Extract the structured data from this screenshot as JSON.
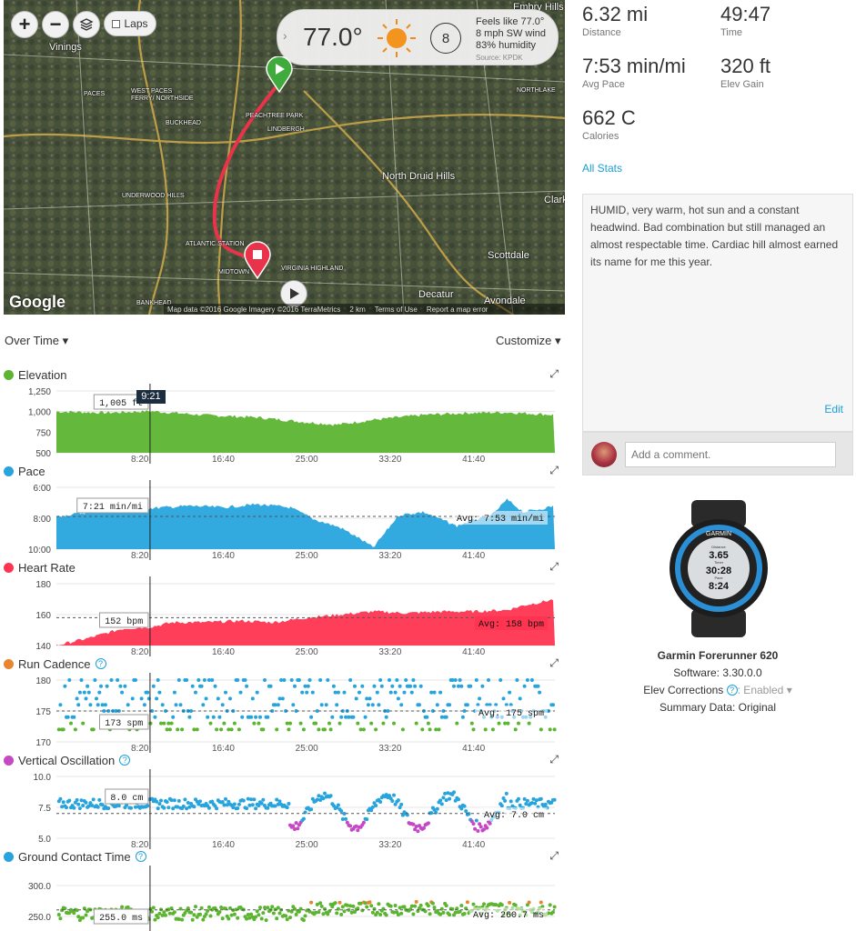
{
  "map": {
    "zoom_in": "+",
    "zoom_out": "−",
    "laps_label": "Laps",
    "weather": {
      "temp": "77.0°",
      "wind_speed": "8",
      "feels_like": "Feels like 77.0°",
      "wind": "8 mph SW wind",
      "humidity": "83% humidity",
      "source": "Source: KPDK"
    },
    "labels": [
      "Vinings",
      "PACES",
      "WEST PACES FERRY/ NORTHSIDE",
      "BUCKHEAD",
      "PEACHTREE PARK",
      "LINDBERGH",
      "North Druid Hills",
      "UNDERWOOD HILLS",
      "ATLANTIC STATION",
      "MIDTOWN",
      "VIRGINIA HIGHLAND",
      "Scottdale",
      "Decatur",
      "Avondale",
      "NORTHLAKE",
      "Clark",
      "BANKHEAD",
      "Embry Hills"
    ],
    "google": "Google",
    "footer": [
      "Map data ©2016 Google Imagery ©2016 TerraMetrics",
      "2 km",
      "Terms of Use",
      "Report a map error"
    ]
  },
  "stats": [
    {
      "value": "6.32 mi",
      "label": "Distance"
    },
    {
      "value": "49:47",
      "label": "Time"
    },
    {
      "value": "7:53 min/mi",
      "label": "Avg Pace"
    },
    {
      "value": "320 ft",
      "label": "Elev Gain"
    },
    {
      "value": "662 C",
      "label": "Calories"
    }
  ],
  "all_stats": "All Stats",
  "notes": {
    "text": "HUMID, very warm, hot sun and a constant headwind. Bad combination but still managed an almost respectable time. Cardiac hill almost earned its name for me this year.",
    "edit": "Edit"
  },
  "comment": {
    "placeholder": "Add a comment."
  },
  "device": {
    "brand": "GARMIN",
    "screen": [
      "Distance",
      "3.65",
      "Timer",
      "30:28",
      "Pace",
      "8:24"
    ],
    "name": "Garmin Forerunner 620",
    "software": "Software: 3.30.0.0",
    "elev_label": "Elev Corrections",
    "elev_value": ": Enabled",
    "summary": "Summary Data: Original"
  },
  "controls": {
    "over_time": "Over Time",
    "customize": "Customize"
  },
  "cursor": {
    "time": "9:21"
  },
  "colors": {
    "elevation": "#5cb531",
    "pace": "#27a4dd",
    "heart": "#ff3451",
    "cadence": "#e8852e",
    "vo": "#c548c5",
    "gct": "#27a4dd",
    "link": "#1a9fd6"
  },
  "chart_data": [
    {
      "type": "area",
      "title": "Elevation",
      "color": "#5cb531",
      "y_ticks": [
        "1,250",
        "1,000",
        "750",
        "500"
      ],
      "ylim": [
        500,
        1250
      ],
      "x_ticks": [
        "8:20",
        "16:40",
        "25:00",
        "33:20",
        "41:40"
      ],
      "xlim_s": [
        0,
        2987
      ],
      "series": [
        {
          "x": [
            0,
            300,
            561,
            900,
            1200,
            1500,
            1680,
            1900,
            2200,
            2500,
            2700,
            2987
          ],
          "values": [
            1000,
            985,
            1005,
            955,
            930,
            870,
            840,
            900,
            960,
            985,
            990,
            960
          ]
        }
      ],
      "cursor_label": "1,005 ft"
    },
    {
      "type": "area",
      "title": "Pace",
      "color": "#27a4dd",
      "y_ticks": [
        "6:00",
        "8:00",
        "10:00"
      ],
      "ylim_minutes": [
        6,
        10
      ],
      "inverted": true,
      "x_ticks": [
        "8:20",
        "16:40",
        "25:00",
        "33:20",
        "41:40"
      ],
      "series": [
        {
          "x": [
            0,
            200,
            400,
            561,
            800,
            1000,
            1200,
            1400,
            1550,
            1700,
            1800,
            1900,
            2050,
            2200,
            2400,
            2500,
            2600,
            2700,
            2800,
            2900,
            2987
          ],
          "values": [
            7.9,
            7.6,
            7.5,
            7.35,
            7.2,
            7.3,
            7.1,
            7.3,
            8.1,
            8.6,
            9.2,
            9.9,
            7.8,
            7.6,
            8.5,
            8.1,
            7.9,
            6.8,
            7.6,
            7.4,
            7.2
          ]
        }
      ],
      "cursor_label": "7:21 min/mi",
      "avg_label": "Avg: 7:53 min/mi",
      "avg": 7.88
    },
    {
      "type": "area",
      "title": "Heart Rate",
      "color": "#ff3451",
      "y_ticks": [
        "180",
        "160",
        "140"
      ],
      "ylim": [
        140,
        180
      ],
      "x_ticks": [
        "8:20",
        "16:40",
        "25:00",
        "33:20",
        "41:40"
      ],
      "series": [
        {
          "x": [
            0,
            200,
            400,
            561,
            700,
            900,
            1100,
            1300,
            1500,
            1700,
            1900,
            2100,
            2300,
            2500,
            2700,
            2800,
            2900,
            2987
          ],
          "values": [
            140,
            145,
            151,
            152,
            155,
            155,
            156,
            155,
            158,
            160,
            162,
            161,
            162,
            162,
            163,
            166,
            168,
            170
          ]
        }
      ],
      "cursor_label": "152 bpm",
      "avg_label": "Avg: 158 bpm",
      "avg": 158
    },
    {
      "type": "scatter",
      "title": "Run Cadence",
      "color": "#27a4dd",
      "low_color": "#5cb531",
      "y_ticks": [
        "180",
        "175",
        "170"
      ],
      "ylim": [
        170,
        180
      ],
      "x_ticks": [
        "8:20",
        "16:40",
        "25:00",
        "33:20",
        "41:40"
      ],
      "cursor_label": "173 spm",
      "avg_label": "Avg: 175 spm",
      "avg": 175
    },
    {
      "type": "scatter",
      "title": "Vertical Oscillation",
      "color": "#27a4dd",
      "low_color": "#c548c5",
      "y_ticks": [
        "10.0",
        "7.5",
        "5.0"
      ],
      "ylim": [
        5,
        10
      ],
      "x_ticks": [
        "8:20",
        "16:40",
        "25:00",
        "33:20",
        "41:40"
      ],
      "cursor_label": "8.0 cm",
      "avg_label": "Avg: 7.0 cm",
      "avg": 7.0
    },
    {
      "type": "scatter",
      "title": "Ground Contact Time",
      "color": "#5cb531",
      "high_color": "#e8852e",
      "y_ticks": [
        "300.0",
        "250.0"
      ],
      "ylim": [
        230,
        305
      ],
      "x_ticks": [
        "8:20",
        "16:40",
        "25:00",
        "33:20",
        "41:40"
      ],
      "cursor_label": "255.0 ms",
      "avg_label": "Avg: 260.7 ms",
      "avg": 260.7
    }
  ]
}
